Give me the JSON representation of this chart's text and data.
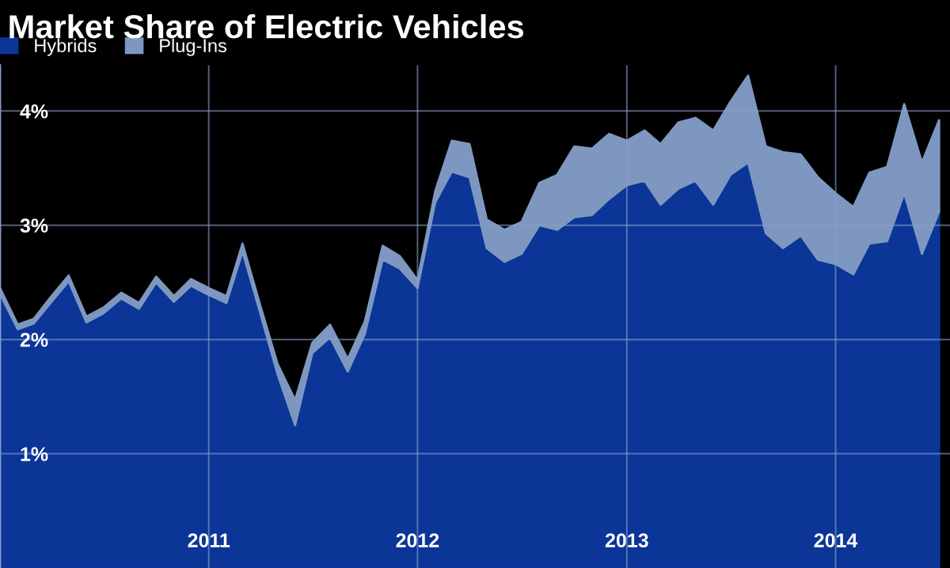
{
  "chart_data": {
    "type": "area",
    "title": "Market Share of Electric Vehicles",
    "stacked": true,
    "legend": "top left",
    "grid": true,
    "x": [
      "2010-01",
      "2010-02",
      "2010-03",
      "2010-04",
      "2010-05",
      "2010-06",
      "2010-07",
      "2010-08",
      "2010-09",
      "2010-10",
      "2010-11",
      "2010-12",
      "2011-01",
      "2011-02",
      "2011-03",
      "2011-04",
      "2011-05",
      "2011-06",
      "2011-07",
      "2011-08",
      "2011-09",
      "2011-10",
      "2011-11",
      "2011-12",
      "2012-01",
      "2012-02",
      "2012-03",
      "2012-04",
      "2012-05",
      "2012-06",
      "2012-07",
      "2012-08",
      "2012-09",
      "2012-10",
      "2012-11",
      "2012-12",
      "2013-01",
      "2013-02",
      "2013-03",
      "2013-04",
      "2013-05",
      "2013-06",
      "2013-07",
      "2013-08",
      "2013-09",
      "2013-10",
      "2013-11",
      "2013-12",
      "2014-01",
      "2014-02",
      "2014-03",
      "2014-04",
      "2014-05",
      "2014-06",
      "2014-07"
    ],
    "series": [
      {
        "name": "Hybrids",
        "color": "#0b3597",
        "values": [
          2.4,
          2.09,
          2.14,
          2.33,
          2.51,
          2.15,
          2.23,
          2.36,
          2.27,
          2.5,
          2.33,
          2.47,
          2.39,
          2.32,
          2.77,
          2.23,
          1.7,
          1.25,
          1.88,
          2.02,
          1.72,
          2.05,
          2.7,
          2.62,
          2.45,
          3.2,
          3.47,
          3.42,
          2.8,
          2.68,
          2.75,
          3.0,
          2.96,
          3.07,
          3.09,
          3.23,
          3.35,
          3.39,
          3.18,
          3.32,
          3.39,
          3.18,
          3.44,
          3.55,
          2.93,
          2.8,
          2.91,
          2.7,
          2.66,
          2.57,
          2.84,
          2.86,
          3.28,
          2.75,
          3.12
        ]
      },
      {
        "name": "Plug-Ins",
        "color": "#7d97c0",
        "values": [
          0.05,
          0.04,
          0.04,
          0.05,
          0.05,
          0.05,
          0.05,
          0.05,
          0.05,
          0.05,
          0.05,
          0.06,
          0.06,
          0.06,
          0.07,
          0.07,
          0.09,
          0.22,
          0.09,
          0.11,
          0.11,
          0.11,
          0.12,
          0.11,
          0.07,
          0.1,
          0.27,
          0.29,
          0.25,
          0.28,
          0.28,
          0.37,
          0.48,
          0.62,
          0.58,
          0.57,
          0.39,
          0.44,
          0.53,
          0.58,
          0.55,
          0.65,
          0.64,
          0.76,
          0.76,
          0.84,
          0.71,
          0.72,
          0.62,
          0.59,
          0.62,
          0.65,
          0.78,
          0.8,
          0.8
        ]
      }
    ],
    "xlim": [
      "2010-01-01",
      "2014-07-20"
    ],
    "xticks": [
      {
        "value": "2011-01-01",
        "label": "2011"
      },
      {
        "value": "2012-01-01",
        "label": "2012"
      },
      {
        "value": "2013-01-01",
        "label": "2013"
      },
      {
        "value": "2014-01-01",
        "label": "2014"
      }
    ],
    "ylim": [
      0,
      4.4
    ],
    "yticks": [
      {
        "value": 1,
        "label": "1%"
      },
      {
        "value": 2,
        "label": "2%"
      },
      {
        "value": 3,
        "label": "3%"
      },
      {
        "value": 4,
        "label": "4%"
      }
    ]
  }
}
